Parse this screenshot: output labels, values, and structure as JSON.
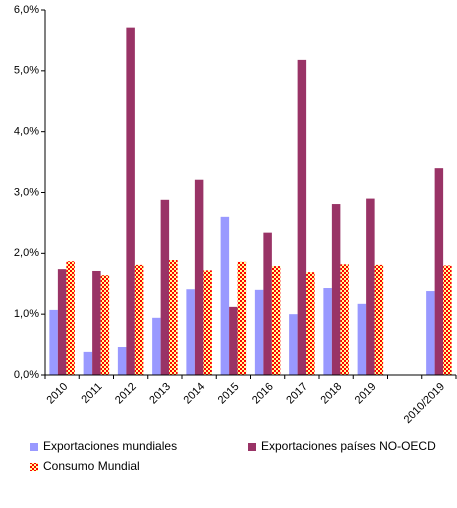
{
  "chart_data": {
    "type": "bar",
    "categories": [
      "2010",
      "2011",
      "2012",
      "2013",
      "2014",
      "2015",
      "2016",
      "2017",
      "2018",
      "2019",
      null,
      "2010/2019"
    ],
    "series": [
      {
        "name": "Exportaciones mundiales",
        "color": "#9999ff",
        "values": [
          1.07,
          0.38,
          0.46,
          0.94,
          1.41,
          2.6,
          1.4,
          1.0,
          1.43,
          1.17,
          null,
          1.38
        ]
      },
      {
        "name": "Exportaciones países NO-OECD",
        "color": "#993366",
        "values": [
          1.74,
          1.71,
          5.71,
          2.88,
          3.21,
          1.12,
          2.34,
          5.18,
          2.81,
          2.9,
          null,
          3.4
        ]
      },
      {
        "name": "Consumo Mundial",
        "color": "#ff0000",
        "values": [
          1.87,
          1.64,
          1.81,
          1.89,
          1.72,
          1.86,
          1.79,
          1.69,
          1.82,
          1.81,
          null,
          1.8
        ]
      }
    ],
    "ylim": [
      0,
      6
    ],
    "yticks": [
      {
        "value": 0,
        "label": "0,0%"
      },
      {
        "value": 1,
        "label": "1,0%"
      },
      {
        "value": 2,
        "label": "2,0%"
      },
      {
        "value": 3,
        "label": "3,0%"
      },
      {
        "value": 4,
        "label": "4,0%"
      },
      {
        "value": 5,
        "label": "5,0%"
      },
      {
        "value": 6,
        "label": "6,0%"
      }
    ],
    "grid": false
  }
}
